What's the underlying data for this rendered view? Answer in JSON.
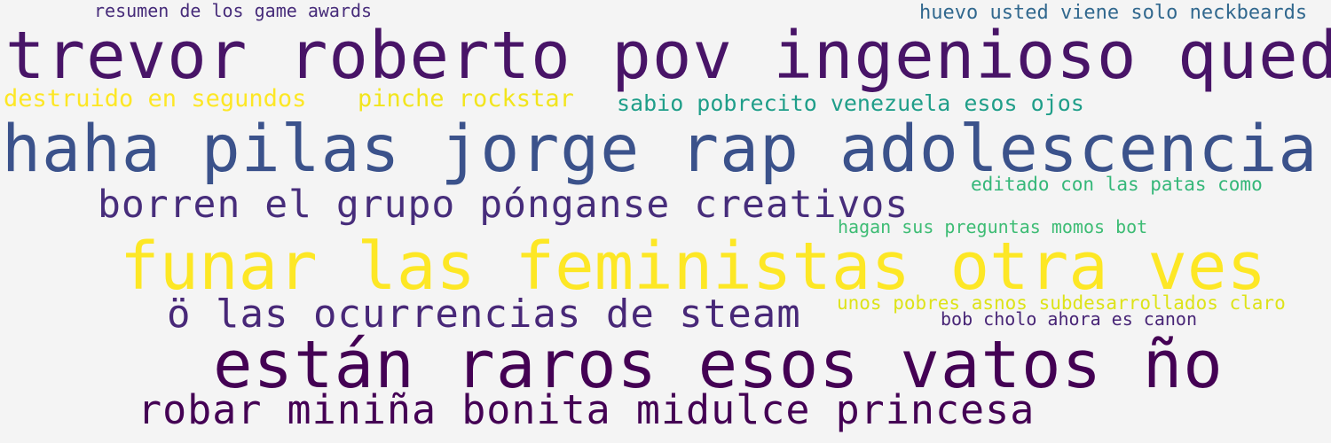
{
  "background": "#f4f4f4",
  "words": [
    {
      "text": "resumen de los game awards",
      "color": "#472c7a"
    },
    {
      "text": "huevo usted viene solo neckbeards",
      "color": "#31688e"
    },
    {
      "text": "trevor roberto pov ingenioso quedé",
      "color": "#481467"
    },
    {
      "text": "destruido en segundos",
      "color": "#fde725"
    },
    {
      "text": "pinche rockstar",
      "color": "#f2e51d"
    },
    {
      "text": "sabio pobrecito venezuela esos ojos",
      "color": "#1f9e89"
    },
    {
      "text": "haha pilas jorge rap adolescencia",
      "color": "#3b528b"
    },
    {
      "text": "editado con las patas como",
      "color": "#35b779"
    },
    {
      "text": "borren el grupo pónganse creativos",
      "color": "#472d7b"
    },
    {
      "text": "hagan sus preguntas momos bot",
      "color": "#3dbc74"
    },
    {
      "text": "funar las feministas otra ves",
      "color": "#fde725"
    },
    {
      "text": "unos pobres asnos subdesarrollados claro",
      "color": "#dde318"
    },
    {
      "text": "ö las ocurrencias de steam",
      "color": "#482878"
    },
    {
      "text": "bob cholo ahora es canon",
      "color": "#482576"
    },
    {
      "text": "están raros esos vatos ño",
      "color": "#440154"
    },
    {
      "text": "robar  miniña bonita midulce princesa",
      "color": "#440154"
    }
  ]
}
